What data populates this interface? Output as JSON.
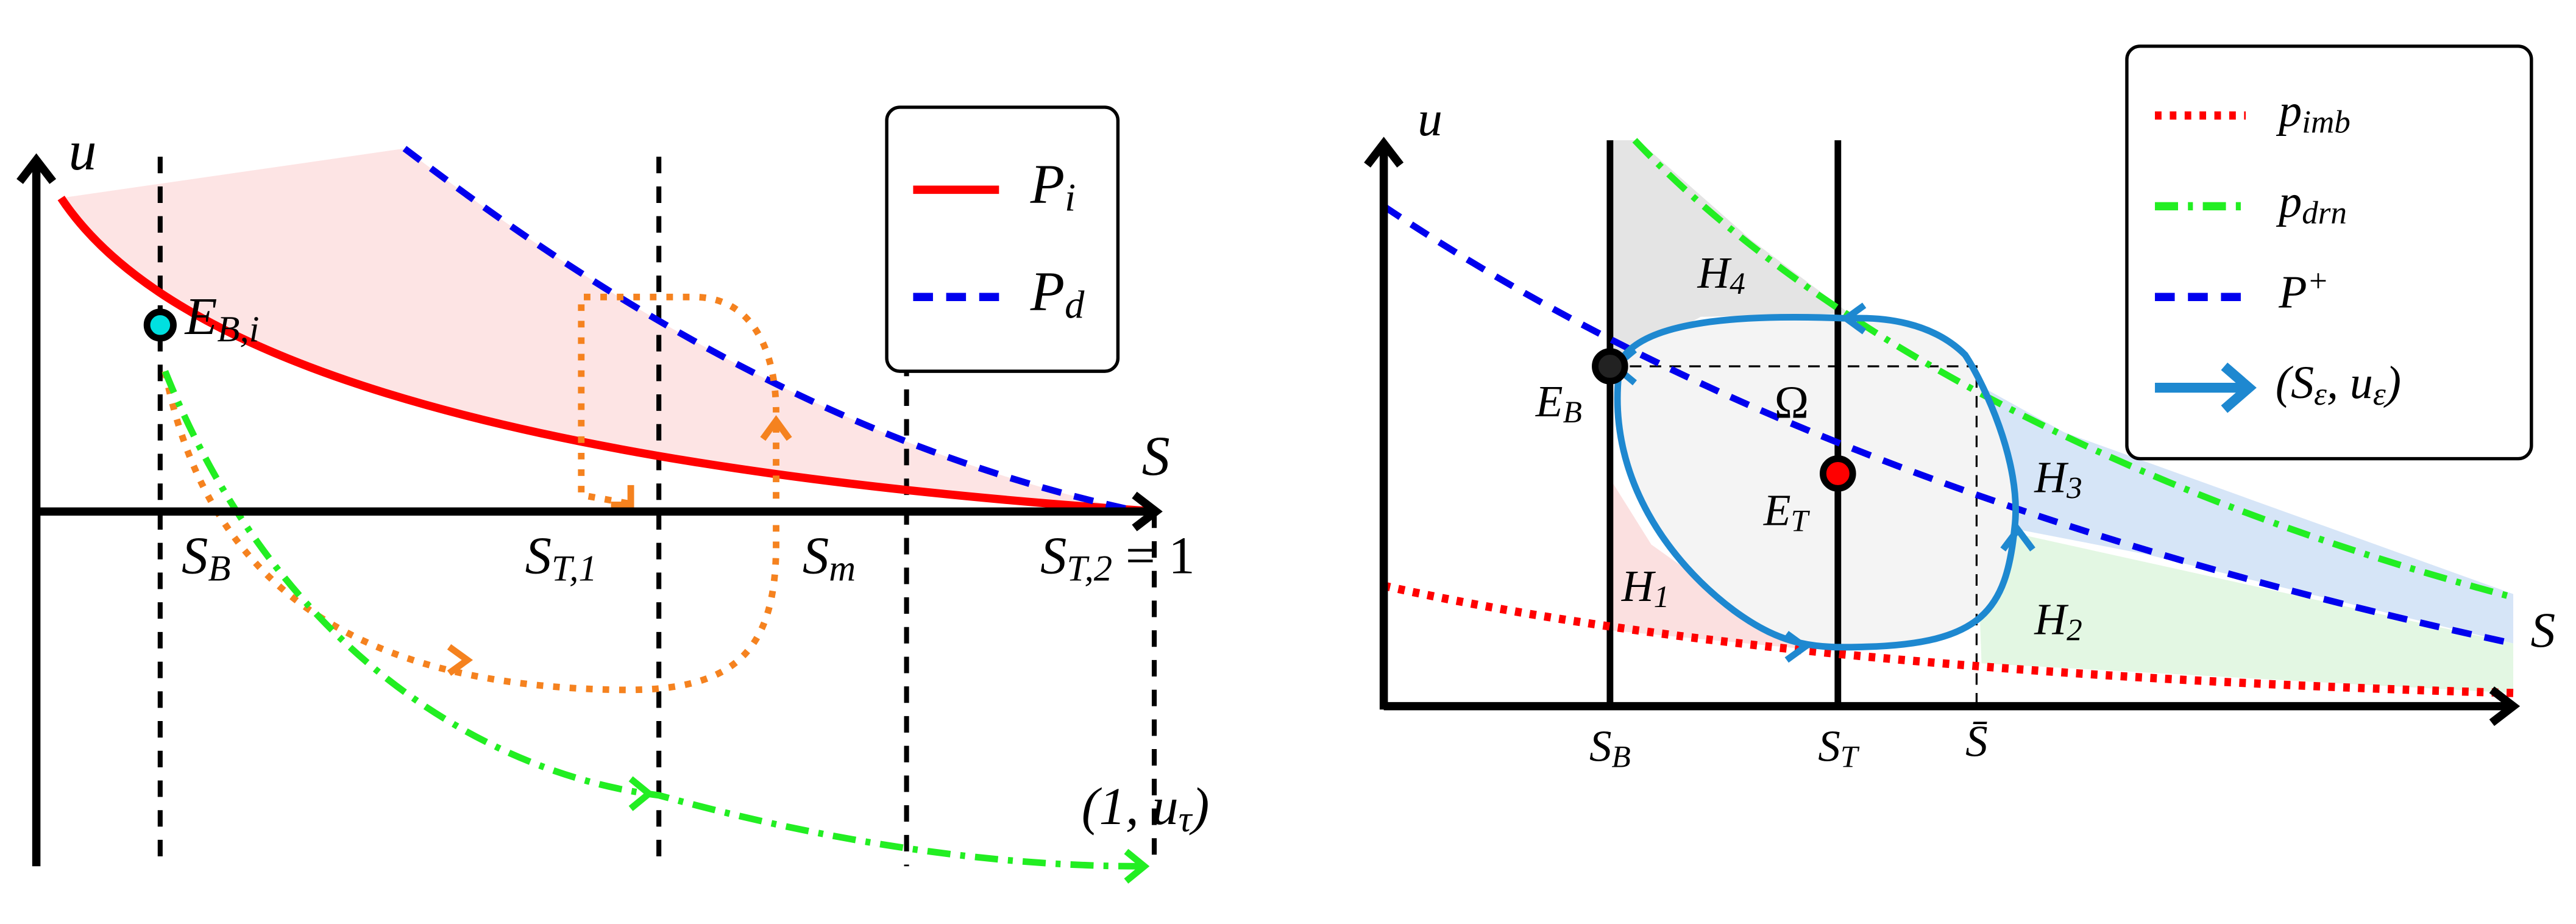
{
  "left_panel": {
    "axis_labels": {
      "y": [
        {
          "text": "u"
        }
      ],
      "x": [
        {
          "text": "S"
        }
      ]
    },
    "point_label": [
      {
        "text": "E"
      },
      {
        "sub": "B,i"
      }
    ],
    "x_ticks": [
      [
        {
          "text": "S"
        },
        {
          "sub": "B"
        }
      ],
      [
        {
          "text": "S"
        },
        {
          "sub": "T,1"
        }
      ],
      [
        {
          "text": "S"
        },
        {
          "sub": "m"
        }
      ],
      [
        {
          "text": "S"
        },
        {
          "sub": "T,2"
        },
        {
          "text": " = 1"
        }
      ]
    ],
    "end_label": [
      {
        "text": "(1, u"
      },
      {
        "sub": "τ"
      },
      {
        "text": ")"
      }
    ],
    "legend": [
      [
        {
          "text": "P"
        },
        {
          "sub": "i"
        }
      ],
      [
        {
          "text": "P"
        },
        {
          "sub": "d"
        }
      ]
    ]
  },
  "right_panel": {
    "axis_labels": {
      "y": [
        {
          "text": "u"
        }
      ],
      "x": [
        {
          "text": "S"
        }
      ]
    },
    "points": [
      [
        {
          "text": "E"
        },
        {
          "sub": "B"
        }
      ],
      [
        {
          "text": "E"
        },
        {
          "sub": "T"
        }
      ]
    ],
    "regions": [
      [
        {
          "text": "Ω"
        }
      ],
      [
        {
          "text": "H"
        },
        {
          "sub": "1"
        }
      ],
      [
        {
          "text": "H"
        },
        {
          "sub": "2"
        }
      ],
      [
        {
          "text": "H"
        },
        {
          "sub": "3"
        }
      ],
      [
        {
          "text": "H"
        },
        {
          "sub": "4"
        }
      ]
    ],
    "x_ticks": [
      [
        {
          "text": "S"
        },
        {
          "sub": "B"
        }
      ],
      [
        {
          "text": "S"
        },
        {
          "sub": "T"
        }
      ],
      [
        {
          "text": "S̄"
        }
      ]
    ],
    "legend": [
      [
        {
          "text": "p"
        },
        {
          "sub": "imb"
        }
      ],
      [
        {
          "text": "p"
        },
        {
          "sub": "drn"
        }
      ],
      [
        {
          "text": "P"
        },
        {
          "sup": "+"
        }
      ],
      [
        {
          "text": "(S"
        },
        {
          "sub": "ε"
        },
        {
          "text": ", u"
        },
        {
          "sub": "ε"
        },
        {
          "text": ")"
        }
      ]
    ]
  }
}
